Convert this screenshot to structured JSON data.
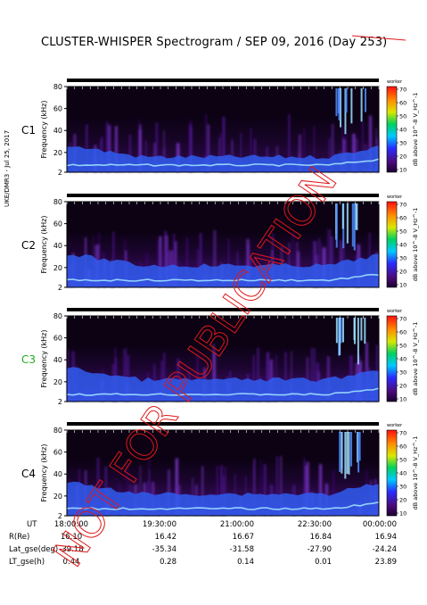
{
  "title": "CLUSTER-WHISPER Spectrogram / SEP 09, 2016 (Day 253)",
  "side_note": "UKE/DMR3 - Jul 25, 2017",
  "watermark": "NOT FOR PUBLICATION",
  "colors": {
    "background": "#000000",
    "plasma_low": "#3a0a5e",
    "plasma_mid": "#6a1fa8",
    "band_blue": "#2f6cff",
    "band_cyan": "#9fe0ff",
    "watermark_red": "#e01818"
  },
  "chart_data": [
    {
      "type": "heatmap",
      "spacecraft": "C1",
      "ylabel": "Frequency (kHz)",
      "yticks": [
        2,
        20,
        40,
        60,
        80
      ],
      "ylim": [
        2,
        80
      ],
      "colorbar": {
        "ticks": [
          10,
          20,
          30,
          40,
          50,
          60,
          70
        ],
        "label": "dB above 10^-8 V_Hz^-1",
        "top_label": "worker"
      },
      "label_color": "#000000"
    },
    {
      "type": "heatmap",
      "spacecraft": "C2",
      "ylabel": "Frequency (kHz)",
      "yticks": [
        2,
        20,
        40,
        60,
        80
      ],
      "ylim": [
        2,
        80
      ],
      "colorbar": {
        "ticks": [
          10,
          20,
          30,
          40,
          50,
          60,
          70
        ],
        "label": "dB above 10^-8 V_Hz^-1",
        "top_label": "worker"
      },
      "label_color": "#000000"
    },
    {
      "type": "heatmap",
      "spacecraft": "C3",
      "ylabel": "Frequency (kHz)",
      "yticks": [
        2,
        20,
        40,
        60,
        80
      ],
      "ylim": [
        2,
        80
      ],
      "colorbar": {
        "ticks": [
          10,
          20,
          30,
          40,
          50,
          60,
          70
        ],
        "label": "dB above 10^-8 V_Hz^-1",
        "top_label": "worker"
      },
      "label_color": "#22aa22"
    },
    {
      "type": "heatmap",
      "spacecraft": "C4",
      "ylabel": "Frequency (kHz)",
      "yticks": [
        2,
        20,
        40,
        60,
        80
      ],
      "ylim": [
        2,
        80
      ],
      "colorbar": {
        "ticks": [
          10,
          20,
          30,
          40,
          50,
          60,
          70
        ],
        "label": "dB above 10^-8 V_Hz^-1",
        "top_label": "worker"
      },
      "label_color": "#000000"
    }
  ],
  "time_axis": {
    "row_labels": [
      "UT",
      "R(Re)",
      "Lat_gse(deg)",
      "LT_gse(h)"
    ],
    "columns": [
      {
        "UT": "18:00:00",
        "R": "16.10",
        "Lat": "-39.18",
        "LT": "0.44"
      },
      {
        "UT": "19:30:00",
        "R": "16.42",
        "Lat": "-35.34",
        "LT": "0.28"
      },
      {
        "UT": "21:00:00",
        "R": "16.67",
        "Lat": "-31.58",
        "LT": "0.14"
      },
      {
        "UT": "22:30:00",
        "R": "16.84",
        "Lat": "-27.90",
        "LT": "0.01"
      },
      {
        "UT": "00:00:00",
        "R": "16.94",
        "Lat": "-24.24",
        "LT": "23.89"
      }
    ]
  }
}
